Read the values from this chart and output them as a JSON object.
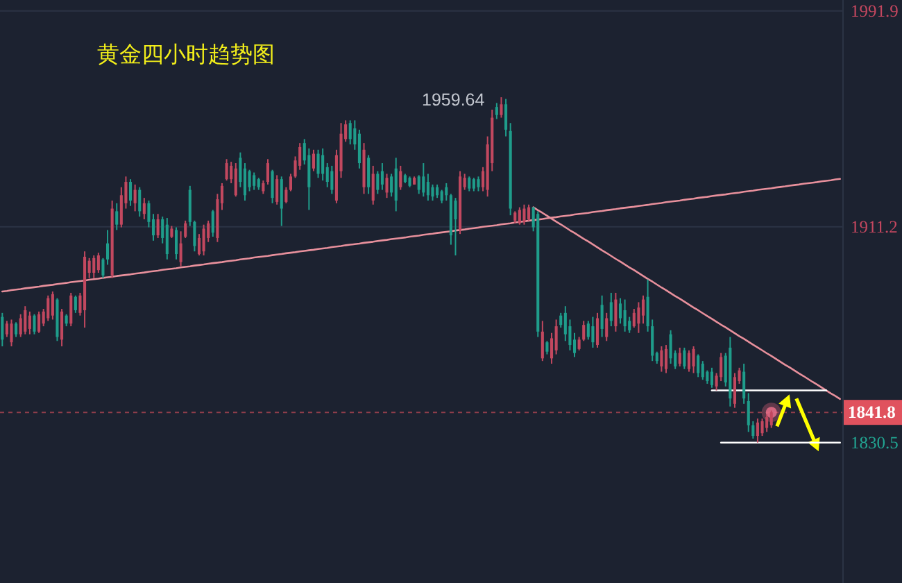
{
  "chart_data": {
    "type": "candlestick",
    "title": "黄金四小时趋势图",
    "categories": [
      null,
      null,
      null,
      null,
      null,
      null,
      null,
      null,
      null,
      null,
      null,
      null,
      null,
      null,
      null,
      null,
      null,
      null,
      null,
      null,
      null,
      null,
      null,
      null,
      null,
      null,
      null,
      null,
      null,
      null,
      null,
      null,
      null,
      null,
      null,
      null,
      null,
      null,
      null,
      null,
      null,
      null,
      null,
      null,
      null,
      null,
      null,
      null,
      null,
      null,
      null,
      null,
      null,
      null,
      null,
      null,
      null,
      null,
      null,
      null,
      null,
      null,
      null,
      null,
      null,
      null,
      null,
      null,
      null,
      null,
      null,
      null,
      null,
      null,
      null,
      null,
      null,
      null,
      null,
      null,
      null,
      null,
      null,
      null,
      null,
      null,
      null,
      null,
      null,
      null,
      null,
      null,
      null,
      null,
      null,
      null,
      null,
      null,
      null,
      null,
      null,
      null,
      null,
      null,
      null,
      null,
      null,
      null,
      null,
      null,
      null,
      null,
      null,
      null,
      null,
      null,
      null,
      null,
      null,
      null,
      null,
      null,
      null,
      null,
      null,
      null,
      null,
      null,
      null,
      null,
      null,
      null,
      null,
      null,
      null,
      null,
      null,
      null,
      null,
      null,
      null,
      null,
      null,
      null,
      null,
      null,
      null,
      null,
      null,
      null,
      null,
      null,
      null,
      null,
      null,
      null,
      null,
      null,
      null,
      null,
      null,
      null,
      null,
      null,
      null,
      null,
      null,
      null,
      null,
      null,
      null,
      null,
      null,
      null,
      null,
      null,
      null,
      null,
      null,
      null,
      null,
      null,
      null,
      null
    ],
    "ohlc": [
      [
        1877.5,
        1879,
        1866.5,
        1869
      ],
      [
        1871,
        1876,
        1870,
        1875
      ],
      [
        1868,
        1876.5,
        1866.5,
        1875
      ],
      [
        1875,
        1875.5,
        1870,
        1871
      ],
      [
        1871,
        1878.5,
        1870,
        1877
      ],
      [
        1872,
        1881.5,
        1871,
        1880
      ],
      [
        1873,
        1879.5,
        1871,
        1878
      ],
      [
        1878,
        1878.5,
        1871,
        1872
      ],
      [
        1872,
        1879.5,
        1871.5,
        1878.5
      ],
      [
        1875,
        1880.5,
        1874,
        1879.5
      ],
      [
        1877,
        1885.5,
        1876,
        1884.5
      ],
      [
        1878,
        1887,
        1876.5,
        1886
      ],
      [
        1884,
        1884.5,
        1868.5,
        1870
      ],
      [
        1869,
        1880.5,
        1866.5,
        1879.5
      ],
      [
        1878,
        1878.5,
        1874,
        1875
      ],
      [
        1875,
        1886.5,
        1874,
        1885.5
      ],
      [
        1885,
        1885.5,
        1879,
        1880
      ],
      [
        1879,
        1886.5,
        1878,
        1885.5
      ],
      [
        1880,
        1902,
        1873.5,
        1900
      ],
      [
        1894,
        1899.5,
        1892,
        1898.5
      ],
      [
        1894,
        1900.5,
        1892,
        1899.5
      ],
      [
        1895,
        1901.5,
        1894,
        1900.5
      ],
      [
        1899,
        1899.5,
        1892,
        1893
      ],
      [
        1905,
        1910,
        1897,
        1899
      ],
      [
        1893,
        1921,
        1892,
        1918
      ],
      [
        1917,
        1920,
        1910,
        1912
      ],
      [
        1912,
        1926,
        1911,
        1923
      ],
      [
        1920,
        1930,
        1918,
        1928
      ],
      [
        1928,
        1929,
        1919,
        1921
      ],
      [
        1920,
        1927,
        1917,
        1925
      ],
      [
        1925,
        1926,
        1915,
        1917
      ],
      [
        1916,
        1922,
        1914,
        1920
      ],
      [
        1920,
        1921,
        1911,
        1913
      ],
      [
        1914,
        1916,
        1906,
        1908
      ],
      [
        1908,
        1916,
        1907,
        1914
      ],
      [
        1914,
        1915,
        1905,
        1907
      ],
      [
        1912,
        1914.5,
        1899,
        1901
      ],
      [
        1907.5,
        1911.5,
        1907,
        1910.5
      ],
      [
        1910,
        1911,
        1899,
        1901
      ],
      [
        1898,
        1909.5,
        1896.5,
        1905
      ],
      [
        1907.5,
        1913.5,
        1907,
        1912.5
      ],
      [
        1925,
        1926.5,
        1911.5,
        1913
      ],
      [
        1913,
        1913.5,
        1902,
        1904
      ],
      [
        1901,
        1908.5,
        1900.5,
        1907
      ],
      [
        1902,
        1912,
        1900.5,
        1910.5
      ],
      [
        1907,
        1913.5,
        1905.5,
        1912.5
      ],
      [
        1917,
        1917.5,
        1907.5,
        1909
      ],
      [
        1907,
        1923.5,
        1905.5,
        1921.5
      ],
      [
        1920,
        1927.5,
        1917.5,
        1926.5
      ],
      [
        1929,
        1936.5,
        1928.5,
        1935
      ],
      [
        1929,
        1935.5,
        1927.5,
        1934
      ],
      [
        1923,
        1935,
        1922.5,
        1933
      ],
      [
        1937,
        1939,
        1926,
        1928
      ],
      [
        1933,
        1935,
        1921,
        1923
      ],
      [
        1932,
        1932.5,
        1924.5,
        1926
      ],
      [
        1930.5,
        1931.5,
        1925,
        1926.5
      ],
      [
        1929,
        1929.5,
        1925,
        1926
      ],
      [
        1924.5,
        1928.5,
        1923.5,
        1927.5
      ],
      [
        1928,
        1936.5,
        1927,
        1935
      ],
      [
        1932,
        1932.5,
        1920,
        1922
      ],
      [
        1920.5,
        1930.5,
        1919.5,
        1929
      ],
      [
        1929,
        1930,
        1911.5,
        1918
      ],
      [
        1920.5,
        1926,
        1920,
        1925
      ],
      [
        1925,
        1931,
        1924.5,
        1930
      ],
      [
        1930,
        1937.5,
        1929.5,
        1936
      ],
      [
        1934,
        1942.5,
        1932.5,
        1941
      ],
      [
        1942.5,
        1944,
        1934.5,
        1936
      ],
      [
        1938,
        1940.5,
        1917.5,
        1926
      ],
      [
        1933,
        1940,
        1932,
        1938.5
      ],
      [
        1938.5,
        1940,
        1929.5,
        1931
      ],
      [
        1938,
        1940.5,
        1928.5,
        1931
      ],
      [
        1933.5,
        1935,
        1926,
        1928
      ],
      [
        1932,
        1934,
        1923.5,
        1925
      ],
      [
        1921,
        1940,
        1920,
        1938
      ],
      [
        1932,
        1950,
        1929.5,
        1946
      ],
      [
        1944,
        1951,
        1943,
        1949.5
      ],
      [
        1950,
        1951,
        1942,
        1944
      ],
      [
        1948,
        1951,
        1940,
        1942
      ],
      [
        1946,
        1947.5,
        1933,
        1935
      ],
      [
        1926,
        1942.5,
        1923.5,
        1940
      ],
      [
        1937,
        1938,
        1923.5,
        1926
      ],
      [
        1921,
        1934,
        1919.5,
        1931
      ],
      [
        1931,
        1932,
        1923.5,
        1925
      ],
      [
        1932,
        1935,
        1925,
        1927
      ],
      [
        1924,
        1931,
        1922,
        1929.5
      ],
      [
        1930,
        1931,
        1922.5,
        1924
      ],
      [
        1933,
        1937,
        1917,
        1921
      ],
      [
        1926,
        1934,
        1925,
        1932
      ],
      [
        1930.5,
        1931,
        1927.5,
        1928
      ],
      [
        1929.5,
        1930,
        1926,
        1926.5
      ],
      [
        1927,
        1930,
        1927,
        1929.5
      ],
      [
        1930,
        1930.5,
        1923.5,
        1925
      ],
      [
        1930,
        1935,
        1922.5,
        1924
      ],
      [
        1928,
        1931,
        1921,
        1923
      ],
      [
        1926,
        1927,
        1921,
        1922.5
      ],
      [
        1926,
        1927,
        1922,
        1923
      ],
      [
        1924.5,
        1925,
        1920,
        1921
      ],
      [
        1926,
        1927.5,
        1921,
        1923
      ],
      [
        1923,
        1923.5,
        1904.5,
        1908
      ],
      [
        1921,
        1922,
        1900.5,
        1914
      ],
      [
        1910,
        1932,
        1908.5,
        1930
      ],
      [
        1926,
        1931,
        1925,
        1929.5
      ],
      [
        1929.5,
        1930,
        1924.5,
        1925.5
      ],
      [
        1929,
        1929.5,
        1924.5,
        1925.5
      ],
      [
        1929,
        1930,
        1924.5,
        1926
      ],
      [
        1926,
        1933.5,
        1924.5,
        1932
      ],
      [
        1925,
        1945,
        1922.5,
        1942
      ],
      [
        1935,
        1955,
        1932,
        1952
      ],
      [
        1956,
        1957.5,
        1951.5,
        1953
      ],
      [
        1953,
        1959.64,
        1952,
        1957
      ],
      [
        1957,
        1959,
        1945,
        1947.5
      ],
      [
        1947,
        1950,
        1915.5,
        1918
      ],
      [
        1913.5,
        1917,
        1912.5,
        1916.5
      ],
      [
        1912.5,
        1918.5,
        1912,
        1917.5
      ],
      [
        1913,
        1919.5,
        1912,
        1918
      ],
      [
        1914,
        1919.5,
        1913.5,
        1918.5
      ],
      [
        1918.5,
        1918.5,
        1909.5,
        1911
      ],
      [
        1916,
        1917,
        1870,
        1872
      ],
      [
        1862,
        1876,
        1861,
        1872
      ],
      [
        1868,
        1868.5,
        1863.5,
        1864.5
      ],
      [
        1862,
        1871.5,
        1860,
        1869.5
      ],
      [
        1865,
        1876.5,
        1863.5,
        1874
      ],
      [
        1878,
        1879,
        1873.5,
        1874.5
      ],
      [
        1879,
        1881.5,
        1868.5,
        1871
      ],
      [
        1874,
        1876.5,
        1865,
        1867
      ],
      [
        1869,
        1871.5,
        1862.5,
        1864
      ],
      [
        1865.5,
        1870,
        1865,
        1869
      ],
      [
        1869,
        1876,
        1868.5,
        1874.5
      ],
      [
        1875,
        1876,
        1869,
        1870
      ],
      [
        1874,
        1877.5,
        1866,
        1868
      ],
      [
        1867,
        1879,
        1866,
        1877
      ],
      [
        1882,
        1885.5,
        1870,
        1873
      ],
      [
        1870,
        1879,
        1868.5,
        1877
      ],
      [
        1883,
        1886.5,
        1874,
        1876
      ],
      [
        1874,
        1886.5,
        1872,
        1884
      ],
      [
        1882.5,
        1884.5,
        1875,
        1877
      ],
      [
        1880,
        1884,
        1872,
        1874
      ],
      [
        1876,
        1877.5,
        1871.5,
        1872.5
      ],
      [
        1874,
        1880.5,
        1873.5,
        1879
      ],
      [
        1875,
        1883,
        1871.5,
        1881
      ],
      [
        1878,
        1885.5,
        1875,
        1884
      ],
      [
        1885,
        1891.5,
        1872,
        1874
      ],
      [
        1874,
        1876.5,
        1861,
        1863
      ],
      [
        1864,
        1864.5,
        1860,
        1861
      ],
      [
        1859,
        1866.5,
        1857,
        1865
      ],
      [
        1858,
        1867,
        1856.5,
        1865.5
      ],
      [
        1871,
        1872.5,
        1860,
        1862
      ],
      [
        1864,
        1865,
        1858,
        1859
      ],
      [
        1860,
        1866,
        1859,
        1864
      ],
      [
        1865,
        1866,
        1858,
        1859
      ],
      [
        1858,
        1865,
        1857,
        1864
      ],
      [
        1859,
        1866.5,
        1856.5,
        1865.5
      ],
      [
        1863,
        1863.5,
        1855,
        1856.5
      ],
      [
        1860,
        1861,
        1854,
        1855
      ],
      [
        1857,
        1857.5,
        1852.5,
        1853.5
      ],
      [
        1857,
        1858.5,
        1851,
        1852
      ],
      [
        1851.5,
        1856.5,
        1850,
        1855.5
      ],
      [
        1855,
        1864,
        1853.5,
        1862.5
      ],
      [
        1863,
        1864,
        1851.5,
        1853
      ],
      [
        1866,
        1870,
        1844,
        1847
      ],
      [
        1845,
        1856.5,
        1843.5,
        1855
      ],
      [
        1853.5,
        1858.5,
        1852.5,
        1857.5
      ],
      [
        1857,
        1860,
        1845,
        1847
      ],
      [
        1846,
        1849,
        1834.5,
        1837
      ],
      [
        1837,
        1838.5,
        1832,
        1833
      ],
      [
        1833,
        1839.5,
        1830.5,
        1838
      ],
      [
        1834,
        1839.5,
        1833,
        1838.5
      ],
      [
        1836,
        1841,
        1834.5,
        1840
      ],
      [
        1837,
        1842.5,
        1836,
        1841.8
      ],
      null,
      null,
      null,
      null,
      null,
      null,
      null,
      null,
      null,
      null,
      null,
      null,
      null,
      null,
      null
    ],
    "colors": [
      "#1f9d8b",
      "#c2485f",
      "#c2485f",
      "#1f9d8b",
      "#c2485f",
      "#c2485f",
      "#c2485f",
      "#1f9d8b",
      "#c2485f",
      "#c2485f",
      "#c2485f",
      "#c2485f",
      "#1f9d8b",
      "#c2485f",
      "#1f9d8b",
      "#c2485f",
      "#1f9d8b",
      "#c2485f",
      "#c2485f",
      "#c2485f",
      "#c2485f",
      "#c2485f",
      "#1f9d8b",
      "#1f9d8b",
      "#c2485f",
      "#1f9d8b",
      "#c2485f",
      "#c2485f",
      "#1f9d8b",
      "#c2485f",
      "#1f9d8b",
      "#c2485f",
      "#1f9d8b",
      "#1f9d8b",
      "#c2485f",
      "#1f9d8b",
      "#1f9d8b",
      "#c2485f",
      "#1f9d8b",
      "#c2485f",
      "#c2485f",
      "#1f9d8b",
      "#1f9d8b",
      "#c2485f",
      "#c2485f",
      "#c2485f",
      "#1f9d8b",
      "#c2485f",
      "#c2485f",
      "#c2485f",
      "#c2485f",
      "#c2485f",
      "#1f9d8b",
      "#1f9d8b",
      "#1f9d8b",
      "#1f9d8b",
      "#1f9d8b",
      "#c2485f",
      "#c2485f",
      "#1f9d8b",
      "#c2485f",
      "#1f9d8b",
      "#c2485f",
      "#c2485f",
      "#c2485f",
      "#c2485f",
      "#1f9d8b",
      "#1f9d8b",
      "#c2485f",
      "#1f9d8b",
      "#1f9d8b",
      "#1f9d8b",
      "#1f9d8b",
      "#c2485f",
      "#c2485f",
      "#c2485f",
      "#1f9d8b",
      "#1f9d8b",
      "#1f9d8b",
      "#c2485f",
      "#1f9d8b",
      "#c2485f",
      "#1f9d8b",
      "#1f9d8b",
      "#c2485f",
      "#1f9d8b",
      "#1f9d8b",
      "#c2485f",
      "#1f9d8b",
      "#1f9d8b",
      "#c2485f",
      "#1f9d8b",
      "#1f9d8b",
      "#1f9d8b",
      "#1f9d8b",
      "#1f9d8b",
      "#1f9d8b",
      "#1f9d8b",
      "#1f9d8b",
      "#1f9d8b",
      "#c2485f",
      "#c2485f",
      "#1f9d8b",
      "#1f9d8b",
      "#1f9d8b",
      "#c2485f",
      "#c2485f",
      "#c2485f",
      "#1f9d8b",
      "#c2485f",
      "#1f9d8b",
      "#1f9d8b",
      "#c2485f",
      "#c2485f",
      "#c2485f",
      "#c2485f",
      "#1f9d8b",
      "#1f9d8b",
      "#c2485f",
      "#1f9d8b",
      "#c2485f",
      "#c2485f",
      "#1f9d8b",
      "#1f9d8b",
      "#1f9d8b",
      "#1f9d8b",
      "#c2485f",
      "#c2485f",
      "#1f9d8b",
      "#1f9d8b",
      "#c2485f",
      "#1f9d8b",
      "#c2485f",
      "#1f9d8b",
      "#c2485f",
      "#1f9d8b",
      "#1f9d8b",
      "#1f9d8b",
      "#c2485f",
      "#c2485f",
      "#c2485f",
      "#1f9d8b",
      "#1f9d8b",
      "#1f9d8b",
      "#c2485f",
      "#c2485f",
      "#1f9d8b",
      "#1f9d8b",
      "#c2485f",
      "#1f9d8b",
      "#c2485f",
      "#c2485f",
      "#1f9d8b",
      "#1f9d8b",
      "#1f9d8b",
      "#1f9d8b",
      "#c2485f",
      "#c2485f",
      "#1f9d8b",
      "#1f9d8b",
      "#c2485f",
      "#c2485f",
      "#1f9d8b",
      "#1f9d8b",
      "#1f9d8b",
      "#c2485f",
      "#c2485f",
      "#c2485f",
      "#c2485f",
      null,
      null,
      null,
      null,
      null,
      null,
      null,
      null,
      null,
      null,
      null,
      null,
      null,
      null,
      null
    ],
    "series": [
      {
        "type": "line",
        "color": "#e8909c",
        "values": [
          1887.0,
          1887.2,
          1887.5,
          1887.7,
          1887.9,
          1888.2,
          1888.4,
          1888.6,
          1888.8,
          1889.1,
          1889.3,
          1889.5,
          1889.8,
          1890.0,
          1890.2,
          1890.5,
          1890.7,
          1890.9,
          1891.1,
          1891.4,
          1891.6,
          1891.8,
          1892.1,
          1892.3,
          1892.5,
          1892.8,
          1893.0,
          1893.2,
          1893.4,
          1893.7,
          1893.9,
          1894.1,
          1894.4,
          1894.6,
          1894.8,
          1895.1,
          1895.3,
          1895.5,
          1895.7,
          1896.0,
          1896.2,
          1896.4,
          1896.7,
          1896.9,
          1897.1,
          1897.4,
          1897.6,
          1897.8,
          1898.0,
          1898.3,
          1898.5,
          1898.7,
          1899.0,
          1899.2,
          1899.4,
          1899.7,
          1899.9,
          1900.1,
          1900.3,
          1900.6,
          1900.8,
          1901.0,
          1901.3,
          1901.5,
          1901.7,
          1902.0,
          1902.2,
          1902.4,
          1902.6,
          1902.9,
          1903.1,
          1903.3,
          1903.6,
          1903.8,
          1904.0,
          1904.3,
          1904.5,
          1904.7,
          1904.9,
          1905.2,
          1905.4,
          1905.6,
          1905.9,
          1906.1,
          1906.3,
          1906.6,
          1906.8,
          1907.0,
          1907.2,
          1907.5,
          1907.7,
          1907.9,
          1908.2,
          1908.4,
          1908.6,
          1908.9,
          1909.1,
          1909.3,
          1909.5,
          1909.8,
          1910.0,
          1910.2,
          1910.5,
          1910.7,
          1910.9,
          1911.2,
          1911.4,
          1911.6,
          1911.8,
          1912.1,
          1912.3,
          1912.5,
          1912.8,
          1913.0,
          1913.2,
          1913.5,
          1913.7,
          1913.9,
          1914.1,
          1914.4,
          1914.6,
          1914.8,
          1915.1,
          1915.3,
          1915.5,
          1915.8,
          1916.0,
          1916.2,
          1916.4,
          1916.7,
          1916.9,
          1917.1,
          1917.4,
          1917.6,
          1917.8,
          1918.1,
          1918.3,
          1918.5,
          1918.7,
          1919.0,
          1919.2,
          1919.4,
          1919.7,
          1919.9,
          1920.1,
          1920.4,
          1920.6,
          1920.8,
          1921.0,
          1921.3,
          1921.5,
          1921.7,
          1922.0,
          1922.2,
          1922.4,
          1922.7,
          1922.9,
          1923.1,
          1923.3,
          1923.6,
          1923.8,
          1924.0,
          1924.3,
          1924.5,
          1924.7,
          1925.0,
          1925.2,
          1925.4,
          1925.6,
          1925.9,
          1926.1,
          1926.3,
          1926.6,
          1926.8,
          1927.0,
          1927.3,
          1927.5,
          1927.7,
          1927.9,
          1928.2,
          1928.4,
          1928.6,
          1928.9,
          1929.1
        ]
      },
      {
        "type": "line",
        "color": "#e8909c",
        "values": [
          null,
          null,
          null,
          null,
          null,
          null,
          null,
          null,
          null,
          null,
          null,
          null,
          null,
          null,
          null,
          null,
          null,
          null,
          null,
          null,
          null,
          null,
          null,
          null,
          null,
          null,
          null,
          null,
          null,
          null,
          null,
          null,
          null,
          null,
          null,
          null,
          null,
          null,
          null,
          null,
          null,
          null,
          null,
          null,
          null,
          null,
          null,
          null,
          null,
          null,
          null,
          null,
          null,
          null,
          null,
          null,
          null,
          null,
          null,
          null,
          null,
          null,
          null,
          null,
          null,
          null,
          null,
          null,
          null,
          null,
          null,
          null,
          null,
          null,
          null,
          null,
          null,
          null,
          null,
          null,
          null,
          null,
          null,
          null,
          null,
          null,
          null,
          null,
          null,
          null,
          null,
          null,
          null,
          null,
          null,
          null,
          null,
          null,
          null,
          null,
          null,
          null,
          null,
          null,
          null,
          null,
          null,
          null,
          null,
          null,
          null,
          null,
          null,
          null,
          null,
          null,
          1918.5,
          1917.4,
          1916.4,
          1915.3,
          1914.2,
          1913.1,
          1912.1,
          1911.0,
          1909.9,
          1908.9,
          1907.8,
          1906.7,
          1905.7,
          1904.6,
          1903.5,
          1902.4,
          1901.4,
          1900.3,
          1899.2,
          1898.2,
          1897.1,
          1896.0,
          1895.0,
          1893.9,
          1892.8,
          1891.7,
          1890.7,
          1889.6,
          1888.5,
          1887.5,
          1886.4,
          1885.3,
          1884.3,
          1883.2,
          1882.1,
          1881.0,
          1880.0,
          1878.9,
          1877.8,
          1876.8,
          1875.7,
          1874.6,
          1873.6,
          1872.5,
          1871.4,
          1870.3,
          1869.3,
          1868.2,
          1867.1,
          1866.1,
          1865.0,
          1863.9,
          1862.9,
          1861.8,
          1860.7,
          1859.6,
          1858.6,
          1857.5,
          1856.4,
          1855.4,
          1854.3,
          1853.2,
          1852.2,
          1851.1,
          1850.0,
          1848.9,
          1847.9,
          1846.8
        ]
      },
      {
        "type": "line",
        "color": "#ffffff",
        "values": [
          null,
          null,
          null,
          null,
          null,
          null,
          null,
          null,
          null,
          null,
          null,
          null,
          null,
          null,
          null,
          null,
          null,
          null,
          null,
          null,
          null,
          null,
          null,
          null,
          null,
          null,
          null,
          null,
          null,
          null,
          null,
          null,
          null,
          null,
          null,
          null,
          null,
          null,
          null,
          null,
          null,
          null,
          null,
          null,
          null,
          null,
          null,
          null,
          null,
          null,
          null,
          null,
          null,
          null,
          null,
          null,
          null,
          null,
          null,
          null,
          null,
          null,
          null,
          null,
          null,
          null,
          null,
          null,
          null,
          null,
          null,
          null,
          null,
          null,
          null,
          null,
          null,
          null,
          null,
          null,
          null,
          null,
          null,
          null,
          null,
          null,
          null,
          null,
          null,
          null,
          null,
          null,
          null,
          null,
          null,
          null,
          null,
          null,
          null,
          null,
          null,
          null,
          null,
          null,
          null,
          null,
          null,
          null,
          null,
          null,
          null,
          null,
          null,
          null,
          null,
          null,
          null,
          null,
          null,
          null,
          null,
          null,
          null,
          null,
          null,
          null,
          null,
          null,
          null,
          null,
          null,
          null,
          null,
          null,
          null,
          null,
          null,
          null,
          null,
          null,
          null,
          null,
          null,
          null,
          null,
          null,
          null,
          null,
          null,
          null,
          null,
          null,
          null,
          null,
          null,
          1850,
          1850,
          1850,
          1850,
          1850,
          1850,
          1850,
          1850,
          1850,
          1850,
          1850,
          1850,
          1850,
          1850,
          1850,
          1850,
          1850,
          1850,
          1850,
          1850,
          1850,
          1850,
          1850,
          1850,
          1850,
          1850,
          null,
          null,
          null
        ]
      },
      {
        "type": "line",
        "color": "#ffffff",
        "values": [
          null,
          null,
          null,
          null,
          null,
          null,
          null,
          null,
          null,
          null,
          null,
          null,
          null,
          null,
          null,
          null,
          null,
          null,
          null,
          null,
          null,
          null,
          null,
          null,
          null,
          null,
          null,
          null,
          null,
          null,
          null,
          null,
          null,
          null,
          null,
          null,
          null,
          null,
          null,
          null,
          null,
          null,
          null,
          null,
          null,
          null,
          null,
          null,
          null,
          null,
          null,
          null,
          null,
          null,
          null,
          null,
          null,
          null,
          null,
          null,
          null,
          null,
          null,
          null,
          null,
          null,
          null,
          null,
          null,
          null,
          null,
          null,
          null,
          null,
          null,
          null,
          null,
          null,
          null,
          null,
          null,
          null,
          null,
          null,
          null,
          null,
          null,
          null,
          null,
          null,
          null,
          null,
          null,
          null,
          null,
          null,
          null,
          null,
          null,
          null,
          null,
          null,
          null,
          null,
          null,
          null,
          null,
          null,
          null,
          null,
          null,
          null,
          null,
          null,
          null,
          null,
          null,
          null,
          null,
          null,
          null,
          null,
          null,
          null,
          null,
          null,
          null,
          null,
          null,
          null,
          null,
          null,
          null,
          null,
          null,
          null,
          null,
          null,
          null,
          null,
          null,
          null,
          null,
          null,
          null,
          null,
          null,
          null,
          null,
          null,
          null,
          null,
          null,
          null,
          null,
          null,
          null,
          1830.5,
          1830.5,
          1830.5,
          1830.5,
          1830.5,
          1830.5,
          1830.5,
          1830.5,
          1830.5,
          1830.5,
          1830.5,
          1830.5,
          1830.5,
          1830.5,
          1830.5,
          1830.5,
          1830.5,
          1830.5,
          1830.5,
          1830.5,
          1830.5,
          1830.5,
          1830.5,
          1830.5,
          1830.5,
          1830.5,
          1830.5
        ]
      }
    ],
    "ylim": [
      1778,
      1996
    ],
    "yticks": [
      1911.2,
      1991.9
    ],
    "grid": "y",
    "tick_labels": "y",
    "ref_lines": [
      {
        "axis": "y",
        "value": 1841.8,
        "label": "1841.8",
        "color": "#e0525e",
        "line_style": "dashed"
      }
    ],
    "annotations": [
      "1959.64",
      "1830.5"
    ]
  }
}
